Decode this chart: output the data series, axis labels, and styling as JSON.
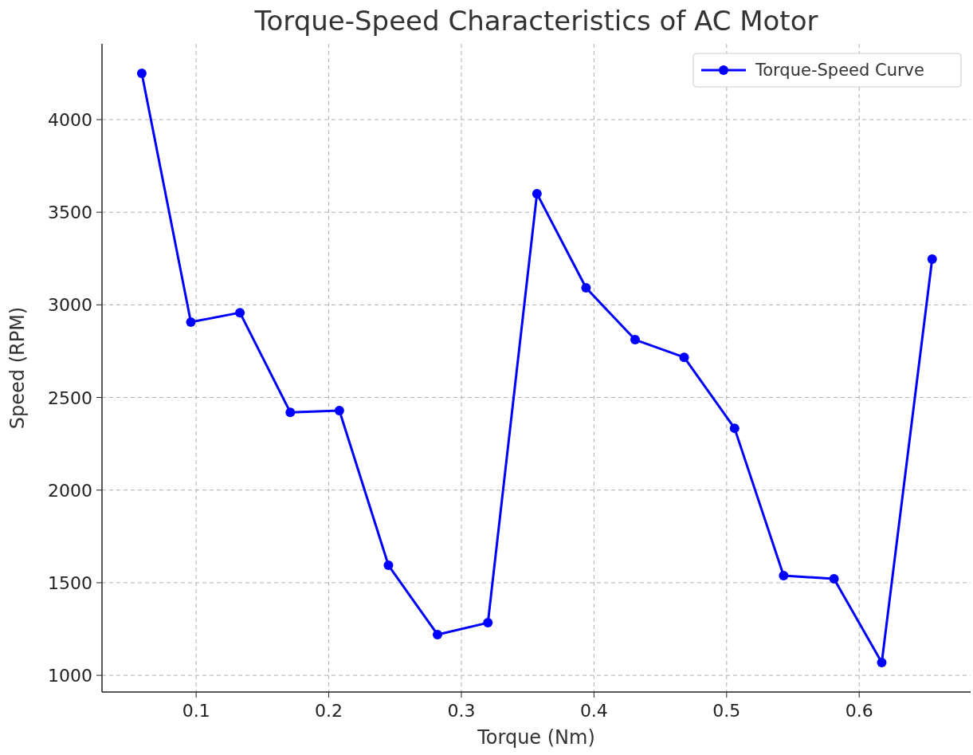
{
  "chart_data": {
    "type": "line",
    "title": "Torque-Speed Characteristics of AC Motor",
    "xlabel": "Torque (Nm)",
    "ylabel": "Speed (RPM)",
    "x": [
      0.059,
      0.096,
      0.133,
      0.171,
      0.208,
      0.245,
      0.282,
      0.32,
      0.357,
      0.394,
      0.431,
      0.468,
      0.506,
      0.543,
      0.581,
      0.617,
      0.655
    ],
    "series": [
      {
        "name": "Torque-Speed Curve",
        "color": "#0000ff",
        "values": [
          4250,
          2907,
          2958,
          2420,
          2429,
          1594,
          1220,
          1284,
          3600,
          3092,
          2812,
          2717,
          2334,
          1538,
          1521,
          1069,
          3247
        ]
      }
    ],
    "xlim": [
      0.029,
      0.684
    ],
    "ylim": [
      910,
      4409
    ],
    "xticks": [
      0.1,
      0.2,
      0.3,
      0.4,
      0.5,
      0.6
    ],
    "yticks": [
      1000,
      1500,
      2000,
      2500,
      3000,
      3500,
      4000
    ],
    "grid": true,
    "legend": "top right",
    "marker": "circle",
    "line_style": "solid"
  }
}
